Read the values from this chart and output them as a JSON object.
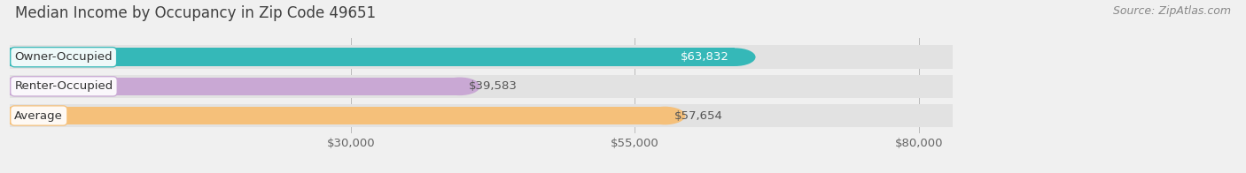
{
  "title": "Median Income by Occupancy in Zip Code 49651",
  "source": "Source: ZipAtlas.com",
  "categories": [
    "Owner-Occupied",
    "Renter-Occupied",
    "Average"
  ],
  "values": [
    63832,
    39583,
    57654
  ],
  "labels": [
    "$63,832",
    "$39,583",
    "$57,654"
  ],
  "bar_colors": [
    "#35b8b8",
    "#c9a8d4",
    "#f5c07a"
  ],
  "background_color": "#f0f0f0",
  "bar_bg_color": "#e2e2e2",
  "xlim_min": 0,
  "xlim_max": 94000,
  "data_max": 80000,
  "xtick_values": [
    30000,
    55000,
    80000
  ],
  "xtick_labels": [
    "$30,000",
    "$55,000",
    "$80,000"
  ],
  "title_fontsize": 12,
  "source_fontsize": 9,
  "label_fontsize": 9.5,
  "category_fontsize": 9.5,
  "bar_height": 0.62,
  "label_white": [
    true,
    false,
    false
  ]
}
